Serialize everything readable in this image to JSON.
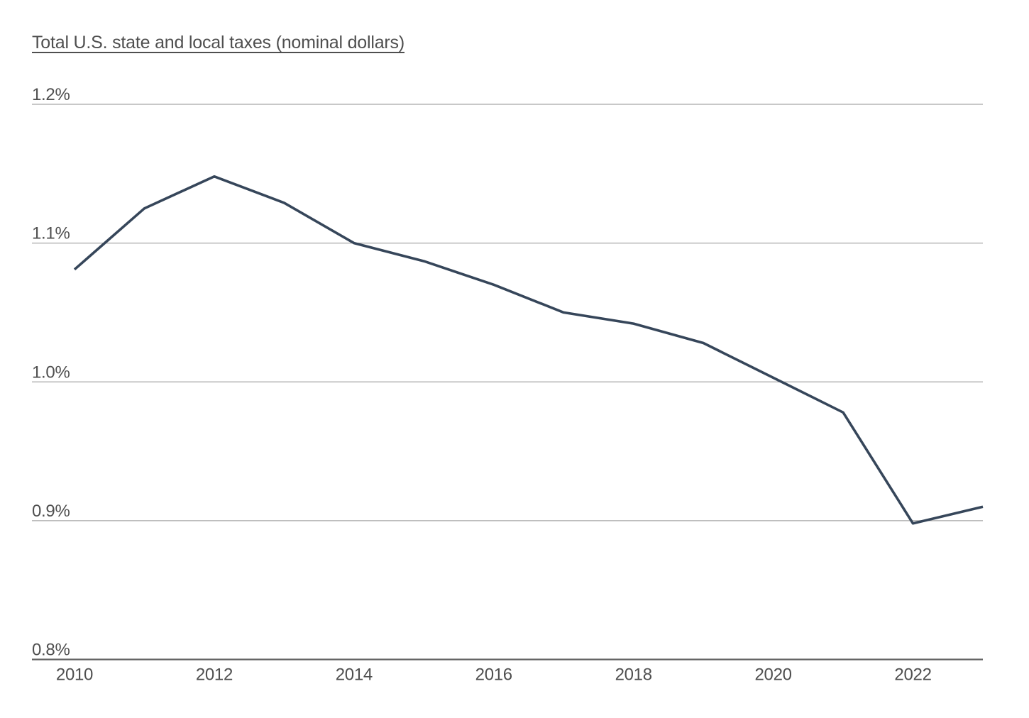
{
  "title": {
    "text": "Total U.S. state and local taxes (nominal dollars)"
  },
  "chart_data": {
    "type": "line",
    "title": "Total U.S. state and local taxes (nominal dollars)",
    "x": [
      2010,
      2011,
      2012,
      2013,
      2014,
      2015,
      2016,
      2017,
      2018,
      2019,
      2020,
      2021,
      2022,
      2023
    ],
    "values": [
      1.081,
      1.125,
      1.148,
      1.129,
      1.1,
      1.087,
      1.07,
      1.05,
      1.042,
      1.028,
      1.003,
      0.978,
      0.898,
      0.91
    ],
    "unit": "percent",
    "xlim": [
      2010,
      2023
    ],
    "ylim": [
      0.8,
      1.2
    ],
    "y_tick_labels": [
      "1.2%",
      "1.1%",
      "1.0%",
      "0.9%",
      "0.8%"
    ],
    "y_tick_values": [
      1.2,
      1.1,
      1.0,
      0.9,
      0.8
    ],
    "x_tick_labels": [
      "2010",
      "2012",
      "2014",
      "2016",
      "2018",
      "2020",
      "2022"
    ],
    "x_tick_years": [
      2010,
      2012,
      2014,
      2016,
      2018,
      2020,
      2022
    ],
    "grid": "horizontal",
    "legend": "none",
    "line_color": "#36465a",
    "grid_color": "#a6a6a6",
    "axis_color": "#636363",
    "label_color": "#4f4f4f"
  }
}
